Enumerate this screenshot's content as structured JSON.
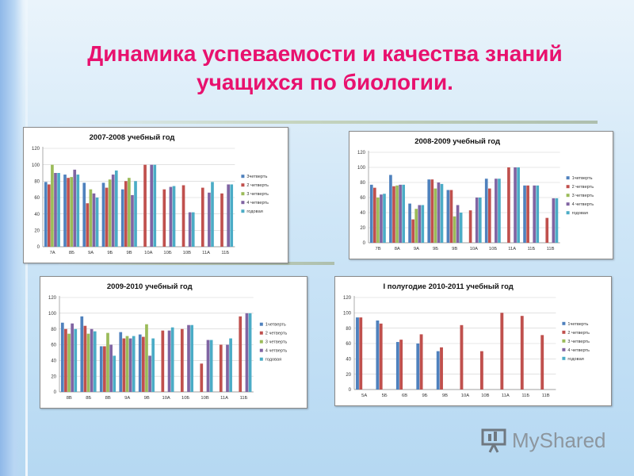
{
  "slide": {
    "title_line1": "Динамика успеваемости и качества знаний",
    "title_line2": "учащихся по биологии.",
    "title_color": "#e8116e",
    "watermark": "MyShared"
  },
  "chart_data": [
    {
      "type": "bar",
      "title": "2007-2008 учебный год",
      "categories": [
        "7А",
        "8Б",
        "9А",
        "9Б",
        "9В",
        "10А",
        "10Б",
        "10В",
        "11А",
        "11Б"
      ],
      "ylim": [
        0,
        120
      ],
      "yticks": [
        0,
        20,
        40,
        60,
        80,
        100,
        120
      ],
      "legend_position": "right",
      "series": [
        {
          "name": "3четверть",
          "color": "#4f81bd",
          "values": [
            79,
            88,
            78,
            78,
            70,
            null,
            null,
            null,
            null,
            null
          ]
        },
        {
          "name": "2 четверть",
          "color": "#c0504d",
          "values": [
            76,
            84,
            53,
            72,
            80,
            100,
            70,
            75,
            72,
            65
          ]
        },
        {
          "name": "3 четверть",
          "color": "#9bbb59",
          "values": [
            100,
            85,
            70,
            82,
            84,
            null,
            null,
            null,
            null,
            null
          ]
        },
        {
          "name": "4 четверть",
          "color": "#8064a2",
          "values": [
            90,
            94,
            65,
            88,
            63,
            100,
            73,
            42,
            66,
            76
          ]
        },
        {
          "name": "годовая",
          "color": "#4bacc6",
          "values": [
            90,
            88,
            60,
            93,
            80,
            100,
            74,
            42,
            79,
            76
          ]
        }
      ]
    },
    {
      "type": "bar",
      "title": "2008-2009 учебный год",
      "categories": [
        "7В",
        "8А",
        "9А",
        "9Б",
        "9В",
        "10А",
        "10Б",
        "11А",
        "11Б",
        "11В"
      ],
      "ylim": [
        0,
        120
      ],
      "yticks": [
        0,
        20,
        40,
        60,
        80,
        100,
        120
      ],
      "legend_position": "right",
      "series": [
        {
          "name": "1четверть",
          "color": "#4f81bd",
          "values": [
            77,
            90,
            52,
            84,
            70,
            null,
            85,
            null,
            76,
            null
          ]
        },
        {
          "name": "2 четверть",
          "color": "#c0504d",
          "values": [
            73,
            75,
            31,
            84,
            70,
            43,
            72,
            100,
            76,
            33
          ]
        },
        {
          "name": "3 четверть",
          "color": "#9bbb59",
          "values": [
            60,
            76,
            45,
            72,
            35,
            null,
            null,
            null,
            null,
            null
          ]
        },
        {
          "name": "4 четверть",
          "color": "#8064a2",
          "values": [
            64,
            77,
            50,
            80,
            50,
            60,
            85,
            100,
            76,
            59
          ]
        },
        {
          "name": "годовая",
          "color": "#4bacc6",
          "values": [
            65,
            77,
            50,
            78,
            40,
            60,
            85,
            100,
            76,
            59
          ]
        }
      ]
    },
    {
      "type": "bar",
      "title": "2009-2010 учебный год",
      "categories": [
        "8В",
        "8Б",
        "8В",
        "9А",
        "9В",
        "10А",
        "10Б",
        "10В",
        "11А",
        "11Б"
      ],
      "ylim": [
        0,
        120
      ],
      "yticks": [
        0,
        20,
        40,
        60,
        80,
        100,
        120
      ],
      "legend_position": "right",
      "series": [
        {
          "name": "1четверть",
          "color": "#4f81bd",
          "values": [
            88,
            96,
            58,
            76,
            73,
            null,
            null,
            null,
            null,
            null
          ]
        },
        {
          "name": "2 четверть",
          "color": "#c0504d",
          "values": [
            80,
            84,
            58,
            68,
            70,
            78,
            80,
            36,
            60,
            96
          ]
        },
        {
          "name": "3 четверть",
          "color": "#9bbb59",
          "values": [
            74,
            74,
            75,
            71,
            86,
            null,
            null,
            null,
            null,
            null
          ]
        },
        {
          "name": "4 четверть",
          "color": "#8064a2",
          "values": [
            87,
            80,
            60,
            68,
            46,
            78,
            85,
            66,
            60,
            100
          ]
        },
        {
          "name": "годовая",
          "color": "#4bacc6",
          "values": [
            80,
            77,
            46,
            71,
            68,
            82,
            85,
            66,
            68,
            100
          ]
        }
      ]
    },
    {
      "type": "bar",
      "title": "I полугодие 2010-2011 учебный год",
      "categories": [
        "5А",
        "5Б",
        "6В",
        "9Б",
        "9В",
        "10А",
        "10В",
        "11А",
        "11Б",
        "11В"
      ],
      "ylim": [
        0,
        120
      ],
      "yticks": [
        0,
        20,
        40,
        60,
        80,
        100,
        120
      ],
      "legend_position": "right",
      "series": [
        {
          "name": "1четверть",
          "color": "#4f81bd",
          "values": [
            94,
            90,
            62,
            60,
            50,
            null,
            null,
            null,
            null,
            null
          ]
        },
        {
          "name": "2 четверть",
          "color": "#c0504d",
          "values": [
            94,
            86,
            65,
            72,
            55,
            84,
            50,
            100,
            96,
            71
          ]
        },
        {
          "name": "3 четверть",
          "color": "#9bbb59",
          "values": [
            null,
            null,
            null,
            null,
            null,
            null,
            null,
            null,
            null,
            null
          ]
        },
        {
          "name": "4 четверть",
          "color": "#8064a2",
          "values": [
            null,
            null,
            null,
            null,
            null,
            null,
            null,
            null,
            null,
            null
          ]
        },
        {
          "name": "годовая",
          "color": "#4bacc6",
          "values": [
            null,
            null,
            null,
            null,
            null,
            null,
            null,
            null,
            null,
            null
          ]
        }
      ]
    }
  ]
}
